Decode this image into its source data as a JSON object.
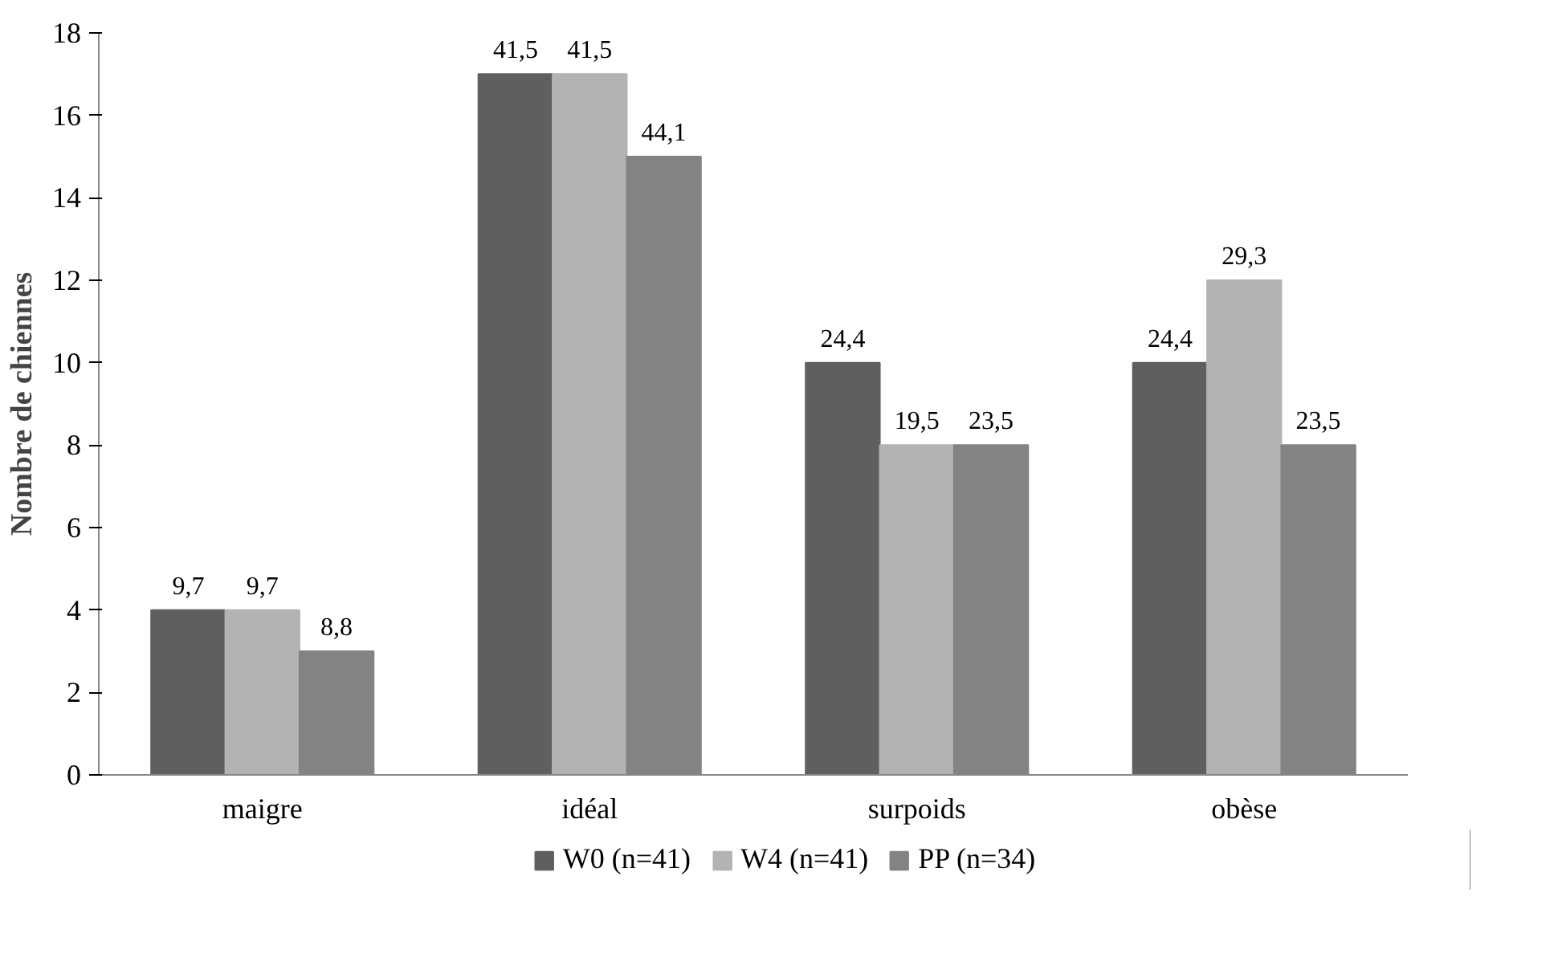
{
  "chart_data": {
    "type": "bar",
    "ylabel": "Nombre de chiennes",
    "categories": [
      "maigre",
      "idéal",
      "surpoids",
      "obèse"
    ],
    "series": [
      {
        "name": "W0 (n=41)",
        "color": "#5f5f5f",
        "values": [
          4,
          17,
          10,
          10
        ]
      },
      {
        "name": "W4 (n=41)",
        "color": "#b3b3b3",
        "values": [
          4,
          17,
          8,
          12
        ]
      },
      {
        "name": "PP (n=34)",
        "color": "#838383",
        "values": [
          3,
          15,
          8,
          8
        ]
      }
    ],
    "annotations": [
      "9,7",
      "41,5",
      "24,4",
      "24,4",
      "9,7",
      "41,5",
      "19,5",
      "29,3",
      "8,8",
      "44,1",
      "23,5",
      "23,5"
    ],
    "ylim": [
      0,
      18
    ],
    "yticks": [
      0,
      2,
      4,
      6,
      8,
      10,
      12,
      14,
      16,
      18
    ],
    "grid": false,
    "legend": "bottom"
  }
}
